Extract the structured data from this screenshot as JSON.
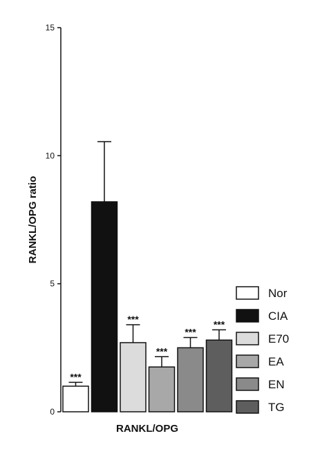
{
  "chart_data": {
    "type": "bar",
    "title": "",
    "ylabel": "RANKL/OPG ratio",
    "xlabel": "RANKL/OPG",
    "ylim": [
      0,
      15
    ],
    "yticks": [
      0,
      5,
      10,
      15
    ],
    "legend_position": "right",
    "series": [
      {
        "name": "Nor",
        "value": 1.0,
        "error": 0.15,
        "significance": "***",
        "color": "#ffffff"
      },
      {
        "name": "CIA",
        "value": 8.2,
        "error": 2.35,
        "significance": "",
        "color": "#111111"
      },
      {
        "name": "E70",
        "value": 2.7,
        "error": 0.7,
        "significance": "***",
        "color": "#dcdcdc"
      },
      {
        "name": "EA",
        "value": 1.75,
        "error": 0.4,
        "significance": "***",
        "color": "#a8a8a8"
      },
      {
        "name": "EN",
        "value": 2.5,
        "error": 0.4,
        "significance": "***",
        "color": "#8a8a8a"
      },
      {
        "name": "TG",
        "value": 2.8,
        "error": 0.4,
        "significance": "***",
        "color": "#5e5e5e"
      }
    ]
  }
}
